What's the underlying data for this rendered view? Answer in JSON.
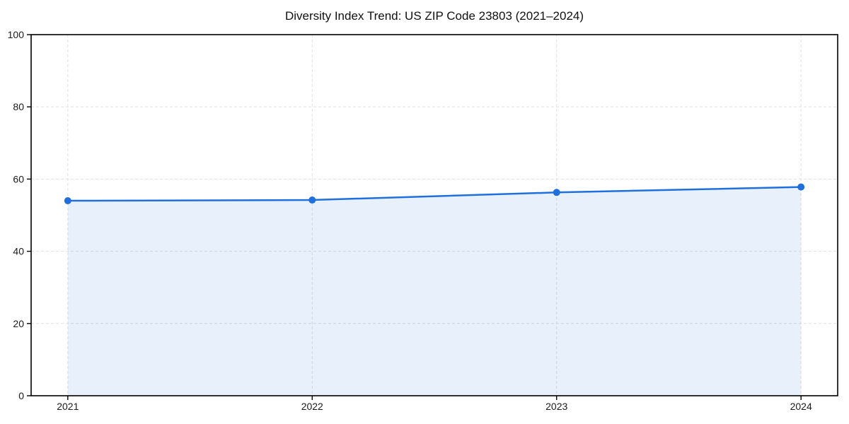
{
  "title": "Diversity Index Trend: US ZIP Code 23803 (2021–2024)",
  "colors": {
    "line": "#1f6fdd",
    "fill": "#1f6fdd",
    "fill_opacity": 0.1,
    "grid": "#e0e0e0",
    "spine": "#000000",
    "text": "#1a1a1a",
    "background": "#ffffff"
  },
  "chart_data": {
    "type": "area",
    "title": "Diversity Index Trend: US ZIP Code 23803 (2021–2024)",
    "x": [
      2021,
      2022,
      2023,
      2024
    ],
    "categories": [
      "2021",
      "2022",
      "2023",
      "2024"
    ],
    "series": [
      {
        "name": "Diversity Index",
        "values": [
          54.0,
          54.2,
          56.3,
          57.8
        ]
      }
    ],
    "xlabel": "",
    "ylabel": "",
    "ylim": [
      0,
      100
    ],
    "yticks": [
      0,
      20,
      40,
      60,
      80,
      100
    ],
    "grid": true,
    "grid_style": "dashed",
    "legend": "none",
    "markers": true
  }
}
